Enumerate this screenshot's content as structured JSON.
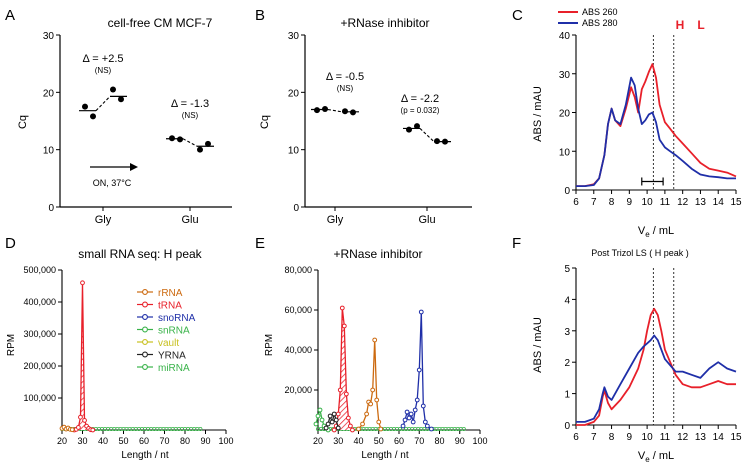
{
  "chart_data": [
    {
      "panel": "A",
      "type": "scatter",
      "title": "cell-free CM MCF-7",
      "xlabel": "",
      "ylabel": "Cq",
      "ylim": [
        0,
        30
      ],
      "yticks": [
        "0",
        "10",
        "20",
        "30"
      ],
      "categories": [
        "Gly",
        "Glu"
      ],
      "groups": [
        {
          "category": "Gly",
          "before": [
            17.5,
            15.8
          ],
          "after": [
            20.5,
            18.8
          ],
          "mean_before": 16.8,
          "mean_after": 19.3,
          "delta": "Δ = +2.5",
          "sig": "(NS)"
        },
        {
          "category": "Glu",
          "before": [
            12.0,
            11.8
          ],
          "after": [
            10.0,
            11.0
          ],
          "mean_before": 11.9,
          "mean_after": 10.6,
          "delta": "Δ = -1.3",
          "sig": "(NS)"
        }
      ],
      "annotation": "ON, 37°C"
    },
    {
      "panel": "B",
      "type": "scatter",
      "title": "+RNase inhibitor",
      "xlabel": "",
      "ylabel": "Cq",
      "ylim": [
        0,
        30
      ],
      "yticks": [
        "0",
        "10",
        "20",
        "30"
      ],
      "categories": [
        "Gly",
        "Glu"
      ],
      "groups": [
        {
          "category": "Gly",
          "before": [
            16.9,
            17.1
          ],
          "after": [
            16.7,
            16.5
          ],
          "mean_before": 17.0,
          "mean_after": 16.6,
          "delta": "Δ = -0.5",
          "sig": "(NS)"
        },
        {
          "category": "Glu",
          "before": [
            13.5,
            14.1
          ],
          "after": [
            11.5,
            11.4
          ],
          "mean_before": 13.7,
          "mean_after": 11.4,
          "delta": "Δ = -2.2",
          "sig": "(p  = 0.032)"
        }
      ]
    },
    {
      "panel": "C",
      "type": "line",
      "title": "",
      "xlabel": "Ve / mL",
      "ylabel": "ABS / mAU",
      "xlim": [
        6,
        15
      ],
      "ylim": [
        0,
        40
      ],
      "xticks": [
        "6",
        "7",
        "8",
        "9",
        "10",
        "11",
        "12",
        "13",
        "14",
        "15"
      ],
      "yticks": [
        "0",
        "10",
        "20",
        "30",
        "40"
      ],
      "legend": [
        "ABS 260",
        "ABS 280"
      ],
      "markers": [
        "H",
        "L"
      ],
      "marker_x": [
        10.35,
        11.5
      ],
      "range_bar": [
        9.7,
        10.9
      ],
      "series": [
        {
          "name": "ABS 260",
          "color": "#e8202a",
          "x": [
            6,
            6.5,
            7,
            7.3,
            7.6,
            7.8,
            8.0,
            8.2,
            8.5,
            8.8,
            9.1,
            9.3,
            9.5,
            9.7,
            9.9,
            10.1,
            10.3,
            10.5,
            10.7,
            11.0,
            11.3,
            11.6,
            12.0,
            12.5,
            13,
            13.5,
            14,
            14.5,
            15
          ],
          "y": [
            1,
            1,
            1.5,
            3,
            9,
            17,
            21,
            18,
            16.5,
            21,
            26.5,
            24,
            20,
            26,
            28,
            30.5,
            32.5,
            29,
            22,
            17.5,
            15.8,
            14,
            12,
            9.5,
            7,
            5.5,
            5,
            4.5,
            3.5
          ]
        },
        {
          "name": "ABS 280",
          "color": "#1f2fa8",
          "x": [
            6,
            6.5,
            7,
            7.3,
            7.6,
            7.8,
            8.0,
            8.2,
            8.5,
            8.8,
            9.1,
            9.3,
            9.5,
            9.7,
            9.9,
            10.1,
            10.3,
            10.5,
            10.7,
            11.0,
            11.3,
            11.6,
            12.0,
            12.5,
            13,
            13.5,
            14,
            14.5,
            15
          ],
          "y": [
            1,
            1,
            1.3,
            3,
            9,
            17,
            21,
            18,
            17,
            22,
            29,
            27,
            21,
            17,
            18,
            19.5,
            20,
            17.5,
            13,
            11,
            10,
            9,
            7.5,
            5.5,
            4,
            3.5,
            3.3,
            3,
            3
          ]
        }
      ]
    },
    {
      "panel": "D",
      "type": "line",
      "title": "small  RNA seq: H peak",
      "xlabel": "Length / nt",
      "ylabel": "RPM",
      "xlim": [
        20,
        100
      ],
      "ylim": [
        0,
        500000
      ],
      "xticks": [
        "20",
        "30",
        "40",
        "50",
        "60",
        "70",
        "80",
        "90",
        "100"
      ],
      "yticks": [
        "100,000",
        "200,000",
        "300,000",
        "400,000",
        "500,000"
      ],
      "legend": [
        "rRNA",
        "tRNA",
        "snoRNA",
        "snRNA",
        "vault",
        "YRNA",
        "miRNA"
      ],
      "series": [
        {
          "name": "tRNA",
          "color": "#e8202a",
          "x": [
            26,
            27,
            28,
            29,
            30,
            31,
            32,
            33,
            34,
            35
          ],
          "y": [
            0,
            2000,
            8000,
            40000,
            460000,
            30000,
            12000,
            5000,
            1000,
            0
          ]
        },
        {
          "name": "rRNA",
          "color": "#cc6a10",
          "x": [
            20,
            21,
            22,
            23,
            24,
            25
          ],
          "y": [
            5000,
            9000,
            3000,
            6000,
            2000,
            1000
          ]
        }
      ]
    },
    {
      "panel": "E",
      "type": "line",
      "title": "+RNase inhibitor",
      "xlabel": "Length / nt",
      "ylabel": "RPM",
      "xlim": [
        20,
        100
      ],
      "ylim": [
        0,
        80000
      ],
      "xticks": [
        "20",
        "30",
        "40",
        "50",
        "60",
        "70",
        "80",
        "90",
        "100"
      ],
      "yticks": [
        "20,000",
        "40,000",
        "60,000",
        "80,000"
      ],
      "series": [
        {
          "name": "tRNA",
          "color": "#e8202a",
          "x": [
            28,
            29,
            30,
            31,
            32,
            33,
            34,
            35,
            36,
            37
          ],
          "y": [
            0,
            2000,
            8000,
            20000,
            61000,
            52000,
            18000,
            6000,
            2000,
            0
          ]
        },
        {
          "name": "rRNA",
          "color": "#cc6a10",
          "x": [
            40,
            42,
            44,
            45,
            46,
            47,
            48,
            49,
            50,
            51
          ],
          "y": [
            500,
            3000,
            8000,
            14000,
            13000,
            20000,
            45000,
            15000,
            4000,
            500
          ]
        },
        {
          "name": "snoRNA",
          "color": "#1f2fa8",
          "x": [
            62,
            63,
            64,
            65,
            66,
            67,
            68,
            69,
            70,
            71,
            72,
            73,
            74,
            76
          ],
          "y": [
            2000,
            5000,
            9000,
            6000,
            8000,
            4000,
            10000,
            15000,
            30000,
            59000,
            12000,
            4000,
            2000,
            500
          ]
        },
        {
          "name": "miRNA",
          "color": "#39b34a",
          "x": [
            19,
            20,
            21,
            22,
            23,
            24,
            25
          ],
          "y": [
            3000,
            7000,
            10000,
            5000,
            2000,
            1000,
            0
          ]
        },
        {
          "name": "YRNA",
          "color": "#222222",
          "x": [
            24,
            25,
            26,
            27,
            28,
            29,
            30
          ],
          "y": [
            1000,
            3000,
            7000,
            4000,
            8000,
            5000,
            1000
          ]
        }
      ]
    },
    {
      "panel": "F",
      "type": "line",
      "title": "Post Trizol LS ( H peak )",
      "xlabel": "Ve / mL",
      "ylabel": "ABS / mAU",
      "xlim": [
        6,
        15
      ],
      "ylim": [
        0,
        5
      ],
      "xticks": [
        "6",
        "7",
        "8",
        "9",
        "10",
        "11",
        "12",
        "13",
        "14",
        "15"
      ],
      "yticks": [
        "0",
        "1",
        "2",
        "3",
        "4",
        "5"
      ],
      "marker_x": [
        10.35,
        11.5
      ],
      "series": [
        {
          "name": "ABS 260",
          "color": "#e8202a",
          "x": [
            6,
            6.5,
            7,
            7.3,
            7.5,
            7.6,
            7.8,
            8.0,
            8.5,
            9.0,
            9.5,
            9.8,
            10.0,
            10.2,
            10.4,
            10.6,
            10.8,
            11.0,
            11.3,
            11.6,
            12,
            12.5,
            13,
            13.5,
            14,
            14.5,
            15
          ],
          "y": [
            0,
            0,
            0.1,
            0.3,
            0.9,
            1.1,
            0.7,
            0.5,
            0.8,
            1.2,
            1.8,
            2.4,
            3.0,
            3.5,
            3.7,
            3.5,
            3.0,
            2.4,
            2.0,
            1.6,
            1.3,
            1.2,
            1.2,
            1.3,
            1.4,
            1.3,
            1.3
          ]
        },
        {
          "name": "ABS 280",
          "color": "#1f2fa8",
          "x": [
            6,
            6.5,
            7,
            7.3,
            7.5,
            7.6,
            7.8,
            8.0,
            8.5,
            9.0,
            9.5,
            9.8,
            10.0,
            10.2,
            10.4,
            10.6,
            10.8,
            11.0,
            11.3,
            11.6,
            12,
            12.5,
            13,
            13.5,
            14,
            14.5,
            15
          ],
          "y": [
            0.1,
            0.1,
            0.2,
            0.5,
            1.0,
            1.2,
            0.9,
            0.8,
            1.3,
            1.8,
            2.3,
            2.5,
            2.6,
            2.7,
            2.85,
            2.7,
            2.4,
            2.1,
            1.9,
            1.7,
            1.7,
            1.6,
            1.5,
            1.8,
            2.0,
            1.8,
            1.7
          ]
        }
      ]
    }
  ],
  "panel_letters": [
    "A",
    "B",
    "C",
    "D",
    "E",
    "F"
  ]
}
